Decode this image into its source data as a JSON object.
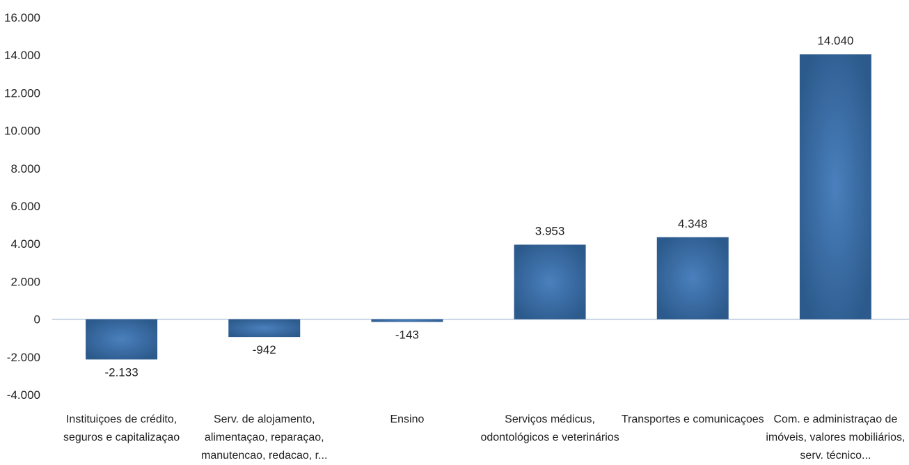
{
  "chart_data": {
    "type": "bar",
    "categories": [
      [
        "Instituiçoes de crédito,",
        "seguros e capitalizaçao"
      ],
      [
        "Serv. de alojamento,",
        "alimentaçao, reparaçao,",
        "manutencao, redacao, r..."
      ],
      [
        "Ensino"
      ],
      [
        "Serviços médicus,",
        "odontológicos e veterinários"
      ],
      [
        "Transportes e comunicaçoes"
      ],
      [
        "Com. e administraçao de",
        "imóveis, valores mobiliários,",
        "serv. técnico..."
      ]
    ],
    "values": [
      -2133,
      -942,
      -143,
      3953,
      4348,
      14040
    ],
    "value_labels": [
      "-2.133",
      "-942",
      "-143",
      "3.953",
      "4.348",
      "14.040"
    ],
    "ylim": [
      -4000,
      16000
    ],
    "yticks": [
      16000,
      14000,
      12000,
      10000,
      8000,
      6000,
      4000,
      2000,
      0,
      -2000,
      -4000
    ],
    "ytick_labels": [
      "16.000",
      "14.000",
      "12.000",
      "10.000",
      "8.000",
      "6.000",
      "4.000",
      "2.000",
      "0",
      "-2.000",
      "-4.000"
    ],
    "title": "",
    "xlabel": "",
    "ylabel": "",
    "grid": false,
    "legend": "none",
    "colors": {
      "bar_edge": "#2c5a8c",
      "bar_center": "#4a80bd",
      "zero_line": "#b8c8dc"
    }
  }
}
